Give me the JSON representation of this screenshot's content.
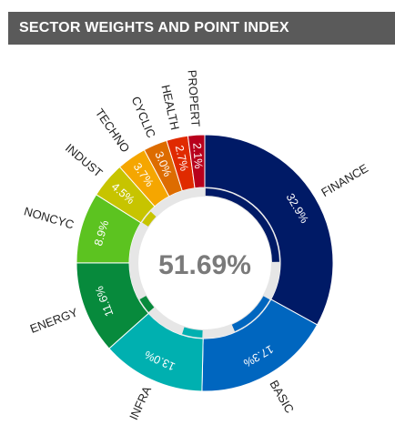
{
  "header": {
    "title": "SECTOR WEIGHTS AND POINT INDEX"
  },
  "colors": {
    "FINANCE": "#001a66",
    "BASIC": "#0066bf",
    "INFRA": "#00b0b0",
    "ENERGY": "#078a3c",
    "NONCYC": "#5cc320",
    "INDUST": "#c7c400",
    "TECHNO": "#f5a600",
    "CYCLIC": "#dd6c00",
    "HEALTH": "#e02a00",
    "PROPERT": "#b8001c",
    "inner_track": "#e6e6e6"
  },
  "chart_data": {
    "type": "donut",
    "title": "SECTOR WEIGHTS AND POINT INDEX",
    "center_value": "51.69%",
    "slices": [
      {
        "name": "FINANCE",
        "weight": 32.9,
        "label": "32.9%"
      },
      {
        "name": "BASIC",
        "weight": 17.3,
        "label": "17.3%"
      },
      {
        "name": "INFRA",
        "weight": 13.0,
        "label": "13.0%"
      },
      {
        "name": "ENERGY",
        "weight": 11.6,
        "label": "11.6%"
      },
      {
        "name": "NONCYC",
        "weight": 8.9,
        "label": "8.9%"
      },
      {
        "name": "INDUST",
        "weight": 4.5,
        "label": "4.5%"
      },
      {
        "name": "TECHNO",
        "weight": 3.7,
        "label": "3.7%"
      },
      {
        "name": "CYCLIC",
        "weight": 3.0,
        "label": "3.0%"
      },
      {
        "name": "HEALTH",
        "weight": 2.7,
        "label": "2.7%"
      },
      {
        "name": "PROPERT",
        "weight": 2.1,
        "label": "2.1%"
      }
    ],
    "point_index": [
      {
        "name": "FINANCE",
        "fill": 0.75
      },
      {
        "name": "BASIC",
        "fill": 0.6
      },
      {
        "name": "INFRA",
        "fill": 0.35
      },
      {
        "name": "ENERGY",
        "fill": 0.3
      },
      {
        "name": "NONCYC",
        "fill": 0.0
      },
      {
        "name": "INDUST",
        "fill": 0.7
      },
      {
        "name": "TECHNO",
        "fill": 0.0
      },
      {
        "name": "CYCLIC",
        "fill": 0.0
      },
      {
        "name": "HEALTH",
        "fill": 0.0
      },
      {
        "name": "PROPERT",
        "fill": 0.0
      }
    ]
  }
}
